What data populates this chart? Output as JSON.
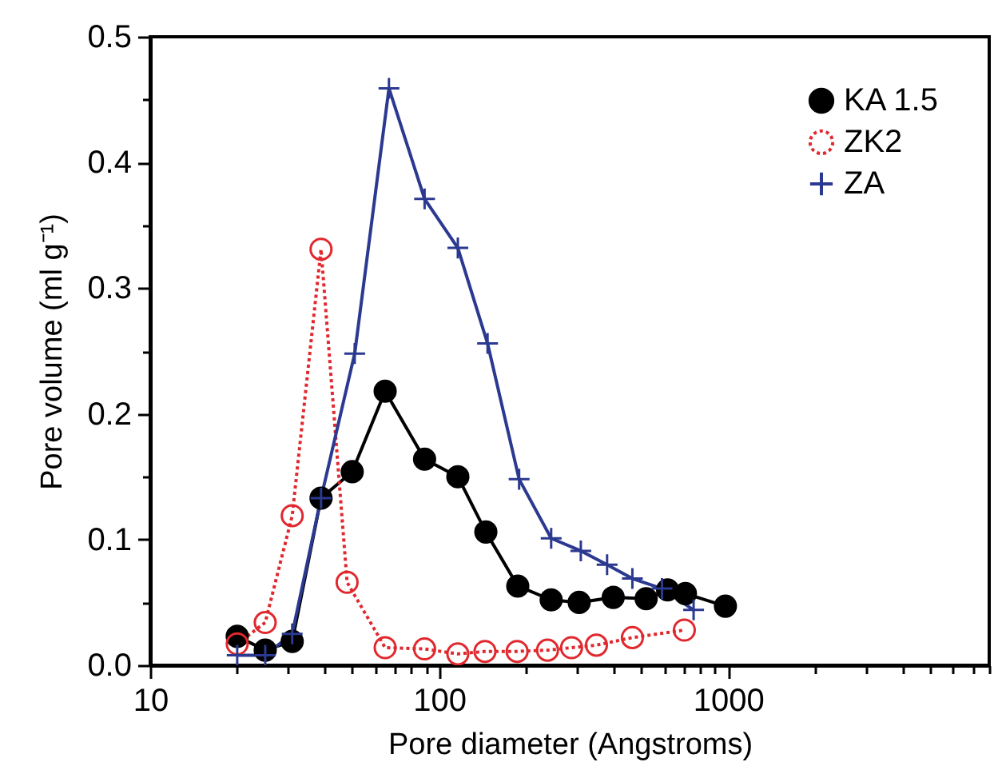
{
  "chart_data": {
    "type": "line",
    "xlabel": "Pore diameter (Angstroms)",
    "ylabel": "Pore volume (ml g⁻¹)",
    "log": "x",
    "xlim": [
      10,
      8000
    ],
    "ylim": [
      0,
      0.5
    ],
    "xticks": [
      10,
      {
        "value": 20,
        "label": null
      },
      {
        "value": 30,
        "label": null
      },
      {
        "value": 40,
        "label": null
      },
      {
        "value": 50,
        "label": null
      },
      {
        "value": 60,
        "label": null
      },
      {
        "value": 70,
        "label": null
      },
      {
        "value": 80,
        "label": null
      },
      {
        "value": 90,
        "label": null
      },
      100,
      {
        "value": 200,
        "label": null
      },
      {
        "value": 300,
        "label": null
      },
      {
        "value": 400,
        "label": null
      },
      {
        "value": 500,
        "label": null
      },
      {
        "value": 600,
        "label": null
      },
      {
        "value": 700,
        "label": null
      },
      {
        "value": 800,
        "label": null
      },
      {
        "value": 900,
        "label": null
      },
      1000,
      {
        "value": 2000,
        "label": null
      },
      {
        "value": 3000,
        "label": null
      },
      {
        "value": 4000,
        "label": null
      },
      {
        "value": 5000,
        "label": null
      },
      {
        "value": 6000,
        "label": null
      },
      {
        "value": 7000,
        "label": null
      },
      {
        "value": 8000,
        "label": null
      }
    ],
    "yticks": [
      {
        "value": 0,
        "label": "0.0"
      },
      {
        "value": 0.05,
        "label": null
      },
      0.1,
      {
        "value": 0.15,
        "label": null
      },
      0.2,
      {
        "value": 0.25,
        "label": null
      },
      0.3,
      {
        "value": 0.35,
        "label": null
      },
      0.4,
      {
        "value": 0.45,
        "label": null
      },
      0.5
    ],
    "grid": false,
    "legend": "top right",
    "series": [
      {
        "name": "KA 1.5",
        "color": "#000000",
        "marker": "circle",
        "line_style": "solid",
        "x": [
          20,
          25,
          31,
          39,
          50,
          65,
          89,
          116,
          145,
          187,
          244,
          305,
          400,
          520,
          617,
          711,
          978
        ],
        "values": [
          0.023,
          0.012,
          0.019,
          0.133,
          0.154,
          0.218,
          0.164,
          0.15,
          0.106,
          0.063,
          0.052,
          0.05,
          0.054,
          0.053,
          0.06,
          0.057,
          0.047
        ]
      },
      {
        "name": "ZK2",
        "color": "#e0282e",
        "marker": "circle",
        "line_style": "dotted",
        "x": [
          20,
          25,
          31,
          39,
          48,
          65,
          89,
          116,
          144,
          186,
          237,
          287,
          350,
          466,
          705
        ],
        "values": [
          0.017,
          0.034,
          0.119,
          0.331,
          0.066,
          0.014,
          0.013,
          0.009,
          0.011,
          0.011,
          0.012,
          0.014,
          0.016,
          0.022,
          0.028
        ]
      },
      {
        "name": "ZA",
        "color": "#2b3990",
        "marker": "cross",
        "line_style": "solid",
        "x": [
          20,
          25,
          31,
          39,
          51,
          67,
          89,
          116,
          147,
          189,
          244,
          309,
          381,
          466,
          590,
          759
        ],
        "values": [
          0.008,
          0.008,
          0.025,
          0.133,
          0.248,
          0.459,
          0.371,
          0.332,
          0.256,
          0.148,
          0.101,
          0.091,
          0.08,
          0.069,
          0.061,
          0.044
        ]
      }
    ]
  }
}
